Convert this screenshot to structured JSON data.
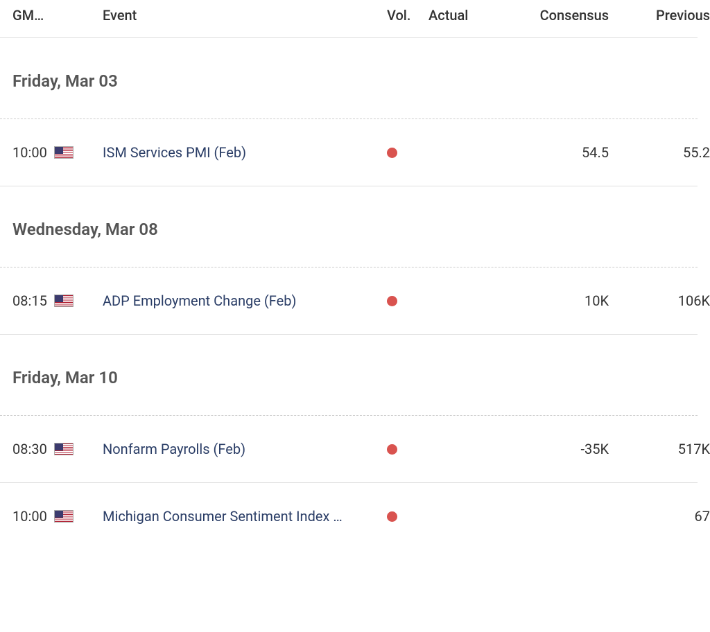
{
  "columns": {
    "gmt": "GM…",
    "event": "Event",
    "vol": "Vol.",
    "actual": "Actual",
    "consensus": "Consensus",
    "previous": "Previous"
  },
  "volatility_color": "#d9534f",
  "sections": [
    {
      "date_label": "Friday, Mar 03",
      "events": [
        {
          "time": "10:00",
          "country": "US",
          "name": "ISM Services PMI (Feb)",
          "volatility": "high",
          "actual": "",
          "consensus": "54.5",
          "previous": "55.2"
        }
      ]
    },
    {
      "date_label": "Wednesday, Mar 08",
      "events": [
        {
          "time": "08:15",
          "country": "US",
          "name": "ADP Employment Change (Feb)",
          "volatility": "high",
          "actual": "",
          "consensus": "10K",
          "previous": "106K"
        }
      ]
    },
    {
      "date_label": "Friday, Mar 10",
      "events": [
        {
          "time": "08:30",
          "country": "US",
          "name": "Nonfarm Payrolls (Feb)",
          "volatility": "high",
          "actual": "",
          "consensus": "-35K",
          "previous": "517K"
        },
        {
          "time": "10:00",
          "country": "US",
          "name": "Michigan Consumer Sentiment Index …",
          "volatility": "high",
          "actual": "",
          "consensus": "",
          "previous": "67"
        }
      ]
    }
  ]
}
